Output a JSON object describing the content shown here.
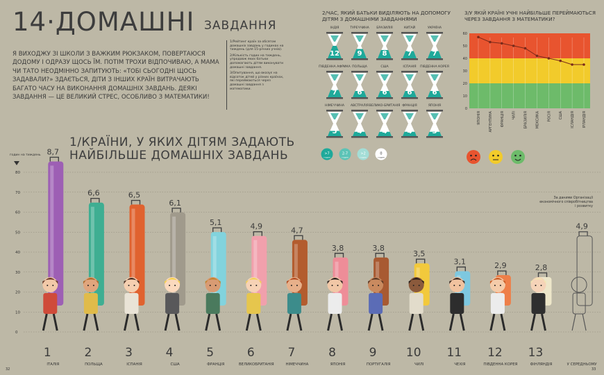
{
  "title": "14·ДОМАШНІ",
  "subtitle": "ЗАВДАННЯ",
  "intro": "Я ВИХОДЖУ ЗІ ШКОЛИ З ВАЖКИМ РЮКЗАКОМ, ПОВЕРТАЮСЯ ДОДОМУ І ОДРАЗУ ЩОСЬ ЇМ. ПОТІМ ТРОХИ ВІДПОЧИВАЮ, А МАМА ЧИ ТАТО НЕОДМІННО ЗАПИТУЮТЬ: «ТОБІ СЬОГОДНІ ЩОСЬ ЗАДАВАЛИ?» ЗДАЄТЬСЯ, ДІТИ З ІНШИХ КРАЇН ВИТРАЧАЮТЬ БАГАТО ЧАСУ НА ВИКОНАННЯ ДОМАШНІХ ЗАВДАНЬ. ДЕЯКІ ЗАВДАННЯ — ЦЕ ВЕЛИКИЙ СТРЕС, ОСОБЛИВО З МАТЕМАТИКИ!",
  "notes": [
    "1/Рейтинг країн за обсягом домашніх завдань у годинах на тиждень (для 15-річних учнів).",
    "2/Кількість годин на тиждень, упродовж яких батьки допомагають дітям виконувати домашні завдання.",
    "3/Опитування, що вказує на відсоток дітей у різних країнах, які переймаються через домашні завдання з математики."
  ],
  "main_heading": "1/КРАЇНИ, У ЯКИХ ДІТЯМ ЗАДАЮТЬ НАЙБІЛЬШЕ ДОМАШНІХ ЗАВДАНЬ",
  "source": "За даними Організації економічного співробітництва і розвитку",
  "page_left": "32",
  "page_right": "33",
  "q2_title": "2/ЧАС, ЯКИЙ БАТЬКИ ВИДІЛЯЮТЬ НА ДОПОМОГУ ДІТЯМ З ДОМАШНІМИ ЗАВДАННЯМИ",
  "q3_title": "3/У ЯКІЙ КРАЇНІ УЧНІ НАЙБІЛЬШЕ ПЕРЕЙМАЮТЬСЯ ЧЕРЕЗ ЗАВДАННЯ З МАТЕМАТИКИ?",
  "colors": {
    "background": "#bdb8a6",
    "red_zone": "#e8542f",
    "yellow_zone": "#f2cb2b",
    "green_zone": "#6dbb6a",
    "hourglass_teal": "#1ea99a",
    "line": "#e8542f"
  },
  "chart_data": [
    {
      "type": "bar",
      "title": "1/КРАЇНИ, У ЯКИХ ДІТЯМ ЗАДАЮТЬ НАЙБІЛЬШЕ ДОМАШНІХ ЗАВДАНЬ",
      "ylabel": "годин на тиждень",
      "ylim": [
        0,
        9
      ],
      "yticks": [
        0,
        10,
        20,
        30,
        40,
        50,
        60,
        70,
        80
      ],
      "grid": true,
      "ranks": [
        "1",
        "2",
        "3",
        "4",
        "5",
        "6",
        "7",
        "8",
        "9",
        "10",
        "11",
        "12",
        "13",
        ""
      ],
      "categories": [
        "ІТАЛІЯ",
        "ПОЛЬЩА",
        "ІСПАНІЯ",
        "США",
        "ФРАНЦІЯ",
        "ВЕЛИКОБРИТАНІЯ",
        "НІМЕЧЧИНА",
        "ЯПОНІЯ",
        "ПОРТУГАЛІЯ",
        "ЧИЛІ",
        "ЧЕХІЯ",
        "ПІВДЕННА КОРЕЯ",
        "ФІНЛЯНДІЯ",
        "У СЕРЕДНЬОМУ"
      ],
      "values": [
        8.7,
        6.6,
        6.5,
        6.1,
        5.1,
        4.9,
        4.7,
        3.8,
        3.8,
        3.5,
        3.1,
        2.9,
        2.8,
        4.9
      ],
      "value_labels": [
        "8,7",
        "6,6",
        "6,5",
        "6,1",
        "5,1",
        "4,9",
        "4,7",
        "3,8",
        "3,8",
        "3,5",
        "3,1",
        "2,9",
        "2,8",
        "4,9"
      ],
      "bag_colors": [
        "#9d5fb4",
        "#3fae92",
        "#e0622f",
        "#a09a8c",
        "#82d3dd",
        "#f1a0ac",
        "#b35c2e",
        "#ee8d98",
        "#a85a32",
        "#f2c93c",
        "#7ec8e0",
        "#ee7f49",
        "#ede6c9",
        "#ffffff"
      ]
    },
    {
      "type": "table",
      "title": "2/ЧАС, ЯКИЙ БАТЬКИ ВИДІЛЯЮТЬ НА ДОПОМОГУ ДІТЯМ З ДОМАШНІМИ ЗАВДАННЯМИ",
      "categories": [
        "ІНДІЯ",
        "ТУРЕЧЧИНА",
        "БРАЗИЛІЯ",
        "КИТАЙ",
        "УКРАЇНА",
        "ПІВДЕННА АФРИКА",
        "ПОЛЬЩА",
        "США",
        "ІСПАНІЯ",
        "ПІВДЕННА КОРЕЯ",
        "НІМЕЧЧИНА",
        "АВСТРАЛІЯ",
        "ВЕЛИКО-БРИТАНІЯ",
        "ФРАНЦІЯ",
        "ЯПОНІЯ"
      ],
      "values": [
        12,
        9,
        8,
        7,
        7,
        7,
        6,
        6,
        6,
        6,
        5,
        4,
        4,
        4,
        3
      ],
      "unit": "годин на тиждень",
      "legend": [
        {
          "symbol": ">7",
          "label": "годин"
        },
        {
          "symbol": "2-7",
          "label": "годин"
        },
        {
          "symbol": ">2",
          "label": "годин"
        },
        {
          "symbol": "0",
          "label": "годин"
        }
      ]
    },
    {
      "type": "line",
      "title": "3/У ЯКІЙ КРАЇНІ УЧНІ НАЙБІЛЬШЕ ПЕРЕЙМАЮТЬСЯ ЧЕРЕЗ ЗАВДАННЯ З МАТЕМАТИКИ?",
      "categories": [
        "ЯПОНІЯ",
        "АРГЕНТИНА",
        "ФРАНЦІЯ",
        "ЧИЛІ",
        "БРАЗИЛІЯ",
        "МЕКСИКА",
        "РОСІЯ",
        "США",
        "ІСЛАНДІЯ",
        "ІРЛАНДІЯ"
      ],
      "values": [
        57,
        53,
        52,
        50,
        48,
        42,
        40,
        38,
        35,
        35
      ],
      "ylim": [
        0,
        60
      ],
      "yticks": [
        0,
        10,
        20,
        30,
        40,
        50,
        60
      ],
      "zones": [
        {
          "from": 40,
          "to": 60,
          "color": "#e8542f"
        },
        {
          "from": 20,
          "to": 40,
          "color": "#f2cb2b"
        },
        {
          "from": 0,
          "to": 20,
          "color": "#6dbb6a"
        }
      ],
      "faces": [
        "sad-face-icon",
        "neutral-face-icon",
        "happy-face-icon"
      ]
    }
  ]
}
